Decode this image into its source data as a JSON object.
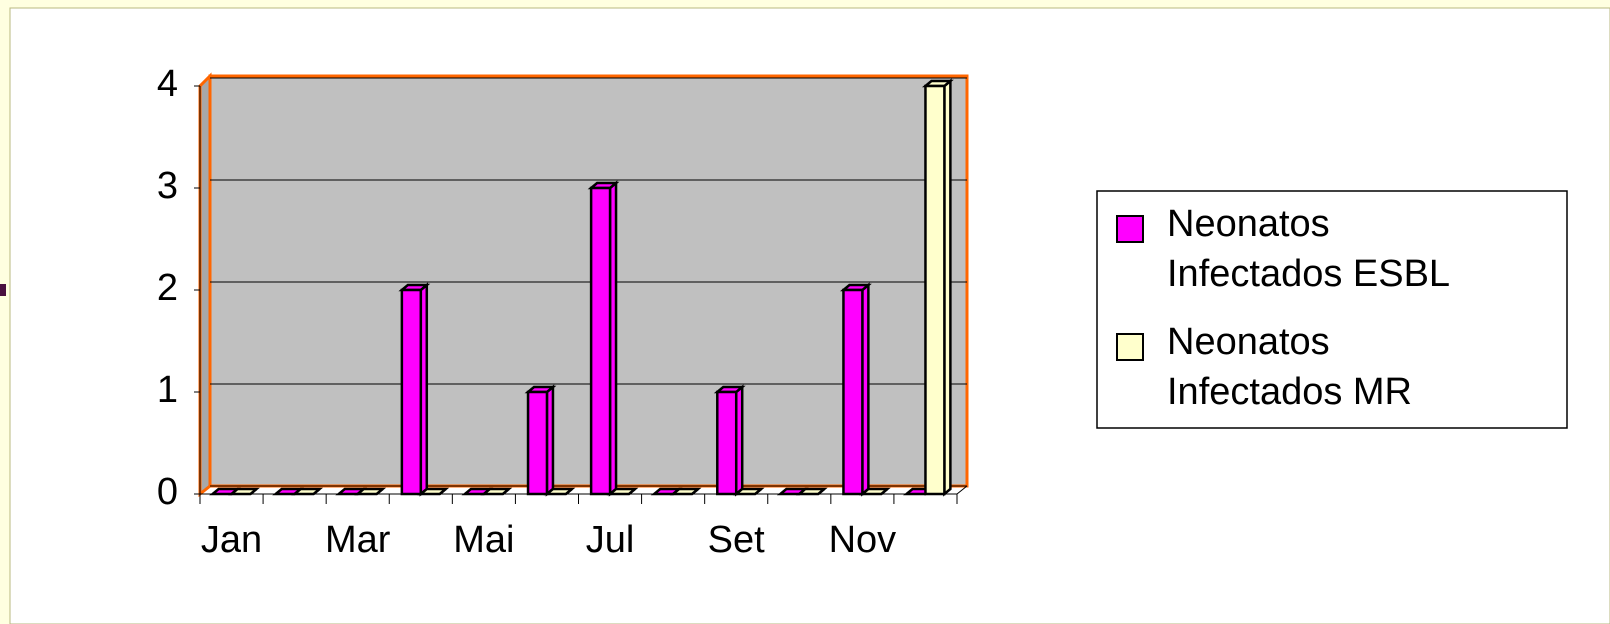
{
  "chart_data": {
    "type": "bar",
    "categories": [
      "Jan",
      null,
      "Mar",
      null,
      "Mai",
      null,
      "Jul",
      null,
      "Set",
      null,
      "Nov",
      null
    ],
    "series": [
      {
        "name": "Neonatos Infectados ESBL",
        "color": "#ff00ff",
        "values": [
          0,
          0,
          0,
          2,
          0,
          1,
          3,
          0,
          1,
          0,
          2,
          0
        ]
      },
      {
        "name": "Neonatos Infectados MR",
        "color": "#ffffcc",
        "values": [
          0,
          0,
          0,
          0,
          0,
          0,
          0,
          0,
          0,
          0,
          0,
          4
        ]
      }
    ],
    "ylim": [
      0,
      4
    ],
    "yticks": [
      0,
      1,
      2,
      3,
      4
    ],
    "grid": true,
    "legend": "right"
  }
}
